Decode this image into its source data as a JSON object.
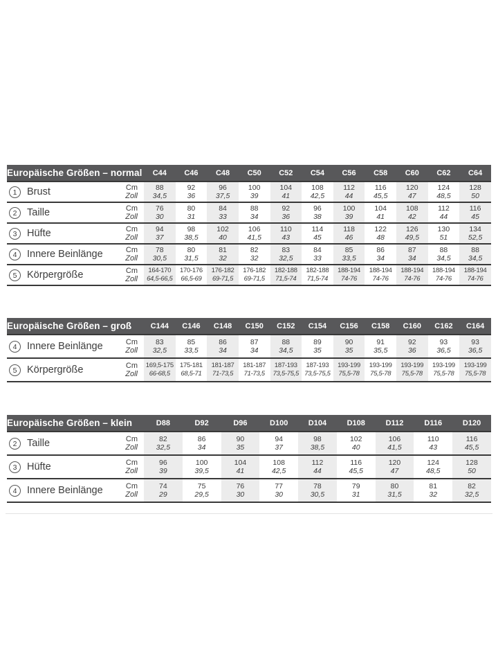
{
  "colors": {
    "header_bg": "#58585a",
    "stripe": "#ececec",
    "rule_dark": "#383838",
    "rule_light": "#e2e2e2",
    "text": "#3c3c3c"
  },
  "units": {
    "cm": "Cm",
    "zoll": "Zoll"
  },
  "tables": [
    {
      "title": "Europäische Größen – normal",
      "columns": [
        "C44",
        "C46",
        "C48",
        "C50",
        "C52",
        "C54",
        "C56",
        "C58",
        "C60",
        "C62",
        "C64"
      ],
      "rows": [
        {
          "num": "1",
          "label": "Brust",
          "cm": [
            "88",
            "92",
            "96",
            "100",
            "104",
            "108",
            "112",
            "116",
            "120",
            "124",
            "128"
          ],
          "zoll": [
            "34,5",
            "36",
            "37,5",
            "39",
            "41",
            "42,5",
            "44",
            "45,5",
            "47",
            "48,5",
            "50"
          ]
        },
        {
          "num": "2",
          "label": "Taille",
          "cm": [
            "76",
            "80",
            "84",
            "88",
            "92",
            "96",
            "100",
            "104",
            "108",
            "112",
            "116"
          ],
          "zoll": [
            "30",
            "31",
            "33",
            "34",
            "36",
            "38",
            "39",
            "41",
            "42",
            "44",
            "45"
          ]
        },
        {
          "num": "3",
          "label": "Hüfte",
          "cm": [
            "94",
            "98",
            "102",
            "106",
            "110",
            "114",
            "118",
            "122",
            "126",
            "130",
            "134"
          ],
          "zoll": [
            "37",
            "38,5",
            "40",
            "41,5",
            "43",
            "45",
            "46",
            "48",
            "49,5",
            "51",
            "52,5"
          ]
        },
        {
          "num": "4",
          "label": "Innere Beinlänge",
          "cm": [
            "78",
            "80",
            "81",
            "82",
            "83",
            "84",
            "85",
            "86",
            "87",
            "88",
            "88"
          ],
          "zoll": [
            "30,5",
            "31,5",
            "32",
            "32",
            "32,5",
            "33",
            "33,5",
            "34",
            "34",
            "34,5",
            "34,5"
          ]
        },
        {
          "num": "5",
          "label": "Körpergröße",
          "cm": [
            "164-170",
            "170-176",
            "176-182",
            "176-182",
            "182-188",
            "182-188",
            "188-194",
            "188-194",
            "188-194",
            "188-194",
            "188-194"
          ],
          "zoll": [
            "64,5-66,5",
            "66,5-69",
            "69-71,5",
            "69-71,5",
            "71,5-74",
            "71,5-74",
            "74-76",
            "74-76",
            "74-76",
            "74-76",
            "74-76"
          ]
        }
      ]
    },
    {
      "title": "Europäische Größen – groß",
      "columns": [
        "C144",
        "C146",
        "C148",
        "C150",
        "C152",
        "C154",
        "C156",
        "C158",
        "C160",
        "C162",
        "C164"
      ],
      "rows": [
        {
          "num": "4",
          "label": "Innere Beinlänge",
          "cm": [
            "83",
            "85",
            "86",
            "87",
            "88",
            "89",
            "90",
            "91",
            "92",
            "93",
            "93"
          ],
          "zoll": [
            "32,5",
            "33,5",
            "34",
            "34",
            "34,5",
            "35",
            "35",
            "35,5",
            "36",
            "36,5",
            "36,5"
          ]
        },
        {
          "num": "5",
          "label": "Körpergröße",
          "cm": [
            "169,5-175",
            "175-181",
            "181-187",
            "181-187",
            "187-193",
            "187-193",
            "193-199",
            "193-199",
            "193-199",
            "193-199",
            "193-199"
          ],
          "zoll": [
            "66-68,5",
            "68,5-71",
            "71-73,5",
            "71-73,5",
            "73,5-75,5",
            "73,5-75,5",
            "75,5-78",
            "75,5-78",
            "75,5-78",
            "75,5-78",
            "75,5-78"
          ]
        }
      ]
    },
    {
      "title": "Europäische Größen – klein",
      "columns": [
        "D88",
        "D92",
        "D96",
        "D100",
        "D104",
        "D108",
        "D112",
        "D116",
        "D120"
      ],
      "rows": [
        {
          "num": "2",
          "label": "Taille",
          "cm": [
            "82",
            "86",
            "90",
            "94",
            "98",
            "102",
            "106",
            "110",
            "116"
          ],
          "zoll": [
            "32,5",
            "34",
            "35",
            "37",
            "38,5",
            "40",
            "41,5",
            "43",
            "45,5"
          ]
        },
        {
          "num": "3",
          "label": "Hüfte",
          "cm": [
            "96",
            "100",
            "104",
            "108",
            "112",
            "116",
            "120",
            "124",
            "128"
          ],
          "zoll": [
            "39",
            "39,5",
            "41",
            "42,5",
            "44",
            "45,5",
            "47",
            "48,5",
            "50"
          ]
        },
        {
          "num": "4",
          "label": "Innere Beinlänge",
          "cm": [
            "74",
            "75",
            "76",
            "77",
            "78",
            "79",
            "80",
            "81",
            "82"
          ],
          "zoll": [
            "29",
            "29,5",
            "30",
            "30",
            "30,5",
            "31",
            "31,5",
            "32",
            "32,5"
          ]
        }
      ]
    }
  ]
}
